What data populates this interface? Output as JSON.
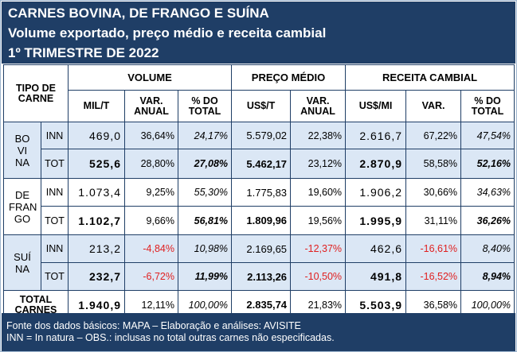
{
  "title": {
    "line1": "CARNES BOVINA, DE FRANGO E SUÍNA",
    "line2": "Volume exportado, preço médio e receita cambial",
    "line3": "1º TRIMESTRE DE 2022"
  },
  "headers": {
    "tipo": "TIPO DE CARNE",
    "volume": "VOLUME",
    "preco": "PREÇO MÉDIO",
    "receita": "RECEITA CAMBIAL",
    "vol_milt": "MIL/T",
    "vol_var": "VAR. ANUAL",
    "vol_pct": "% DO TOTAL",
    "preco_usst": "US$/T",
    "preco_var": "VAR. ANUAL",
    "rec_ussmi": "US$/MI",
    "rec_var": "VAR.",
    "rec_pct": "% DO TOTAL"
  },
  "groups": {
    "bovina": "BO VI NA",
    "frango": "DE FRAN GO",
    "suina": "SUÍ NA",
    "total": "TOTAL CARNES"
  },
  "rows": [
    {
      "tipo": "INN",
      "milt": "469,0",
      "vol_var": "36,64%",
      "vol_pct": "24,17%",
      "usst": "5.579,02",
      "preco_var": "22,38%",
      "ussmi": "2.616,7",
      "rec_var": "67,22%",
      "rec_pct": "47,54%"
    },
    {
      "tipo": "TOT",
      "milt": "525,6",
      "vol_var": "28,80%",
      "vol_pct": "27,08%",
      "usst": "5.462,17",
      "preco_var": "23,12%",
      "ussmi": "2.870,9",
      "rec_var": "58,58%",
      "rec_pct": "52,16%"
    },
    {
      "tipo": "INN",
      "milt": "1.073,4",
      "vol_var": "9,25%",
      "vol_pct": "55,30%",
      "usst": "1.775,83",
      "preco_var": "19,60%",
      "ussmi": "1.906,2",
      "rec_var": "30,66%",
      "rec_pct": "34,63%"
    },
    {
      "tipo": "TOT",
      "milt": "1.102,7",
      "vol_var": "9,66%",
      "vol_pct": "56,81%",
      "usst": "1.809,96",
      "preco_var": "19,56%",
      "ussmi": "1.995,9",
      "rec_var": "31,11%",
      "rec_pct": "36,26%"
    },
    {
      "tipo": "INN",
      "milt": "213,2",
      "vol_var": "-4,84%",
      "vol_pct": "10,98%",
      "usst": "2.169,65",
      "preco_var": "-12,37%",
      "ussmi": "462,6",
      "rec_var": "-16,61%",
      "rec_pct": "8,40%"
    },
    {
      "tipo": "TOT",
      "milt": "232,7",
      "vol_var": "-6,72%",
      "vol_pct": "11,99%",
      "usst": "2.113,26",
      "preco_var": "-10,50%",
      "ussmi": "491,8",
      "rec_var": "-16,52%",
      "rec_pct": "8,94%"
    }
  ],
  "total": {
    "milt": "1.940,9",
    "vol_var": "12,11%",
    "vol_pct": "100,00%",
    "usst": "2.835,74",
    "preco_var": "21,83%",
    "ussmi": "5.503,9",
    "rec_var": "36,58%",
    "rec_pct": "100,00%"
  },
  "footer": {
    "line1": "Fonte dos dados básicos: MAPA – Elaboração e análises: AVISITE",
    "line2": "INN = In natura – OBS.: inclusas no total outras carnes não especificadas."
  },
  "colors": {
    "header_bg": "#1f3e66",
    "row_blue": "#dbe7f5",
    "negative": "#e02020"
  }
}
